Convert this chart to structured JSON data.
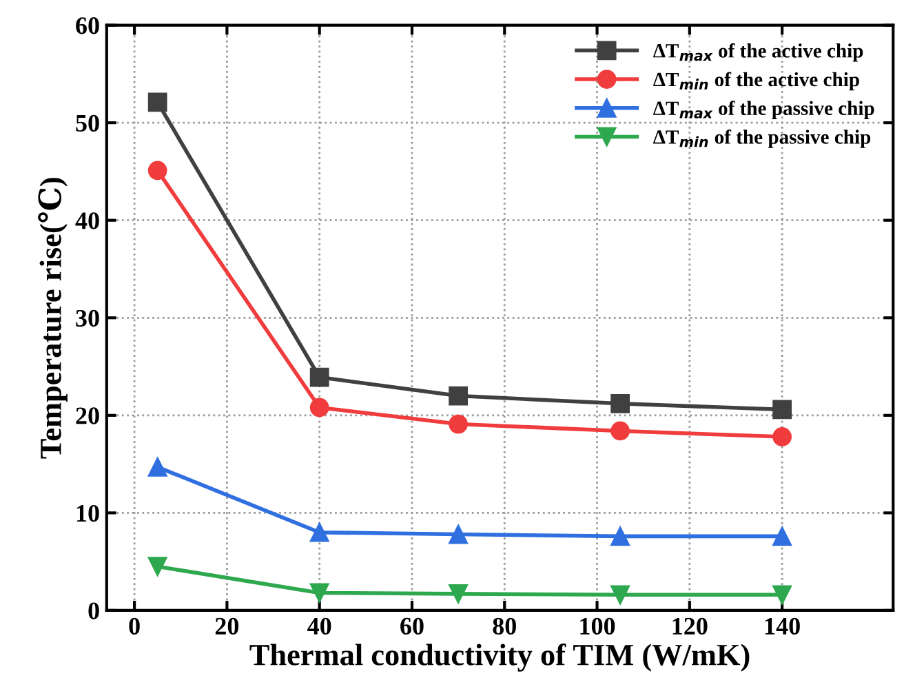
{
  "chart_data": {
    "type": "line",
    "xlabel": "Thermal conductivity of TIM (W/mK)",
    "ylabel": "Temperature rise(℃)",
    "x": [
      5,
      40,
      70,
      105,
      140
    ],
    "xlim": [
      -6,
      164
    ],
    "xticks": [
      0,
      20,
      40,
      60,
      80,
      100,
      120,
      140
    ],
    "ylim": [
      0,
      60
    ],
    "yticks": [
      0,
      10,
      20,
      30,
      40,
      50,
      60
    ],
    "grid": true,
    "legend": "top right",
    "line_style": "solid",
    "series": [
      {
        "name": "ΔT$_{max}$ of the active chip",
        "color": "#404040",
        "marker": "square",
        "values": [
          52.1,
          23.9,
          22.0,
          21.2,
          20.6
        ]
      },
      {
        "name": "ΔT$_{min}$ of the active chip",
        "color": "#f03c3c",
        "marker": "circle",
        "values": [
          45.1,
          20.8,
          19.1,
          18.4,
          17.8
        ]
      },
      {
        "name": "ΔT$_{max}$ of the passive chip",
        "color": "#2f6fdf",
        "marker": "triangle",
        "values": [
          14.7,
          8.0,
          7.8,
          7.6,
          7.6
        ]
      },
      {
        "name": "ΔT$_{min}$ of the passive chip",
        "color": "#2ea84f",
        "marker": "triangle_down",
        "values": [
          4.5,
          1.8,
          1.7,
          1.6,
          1.6
        ]
      }
    ]
  }
}
